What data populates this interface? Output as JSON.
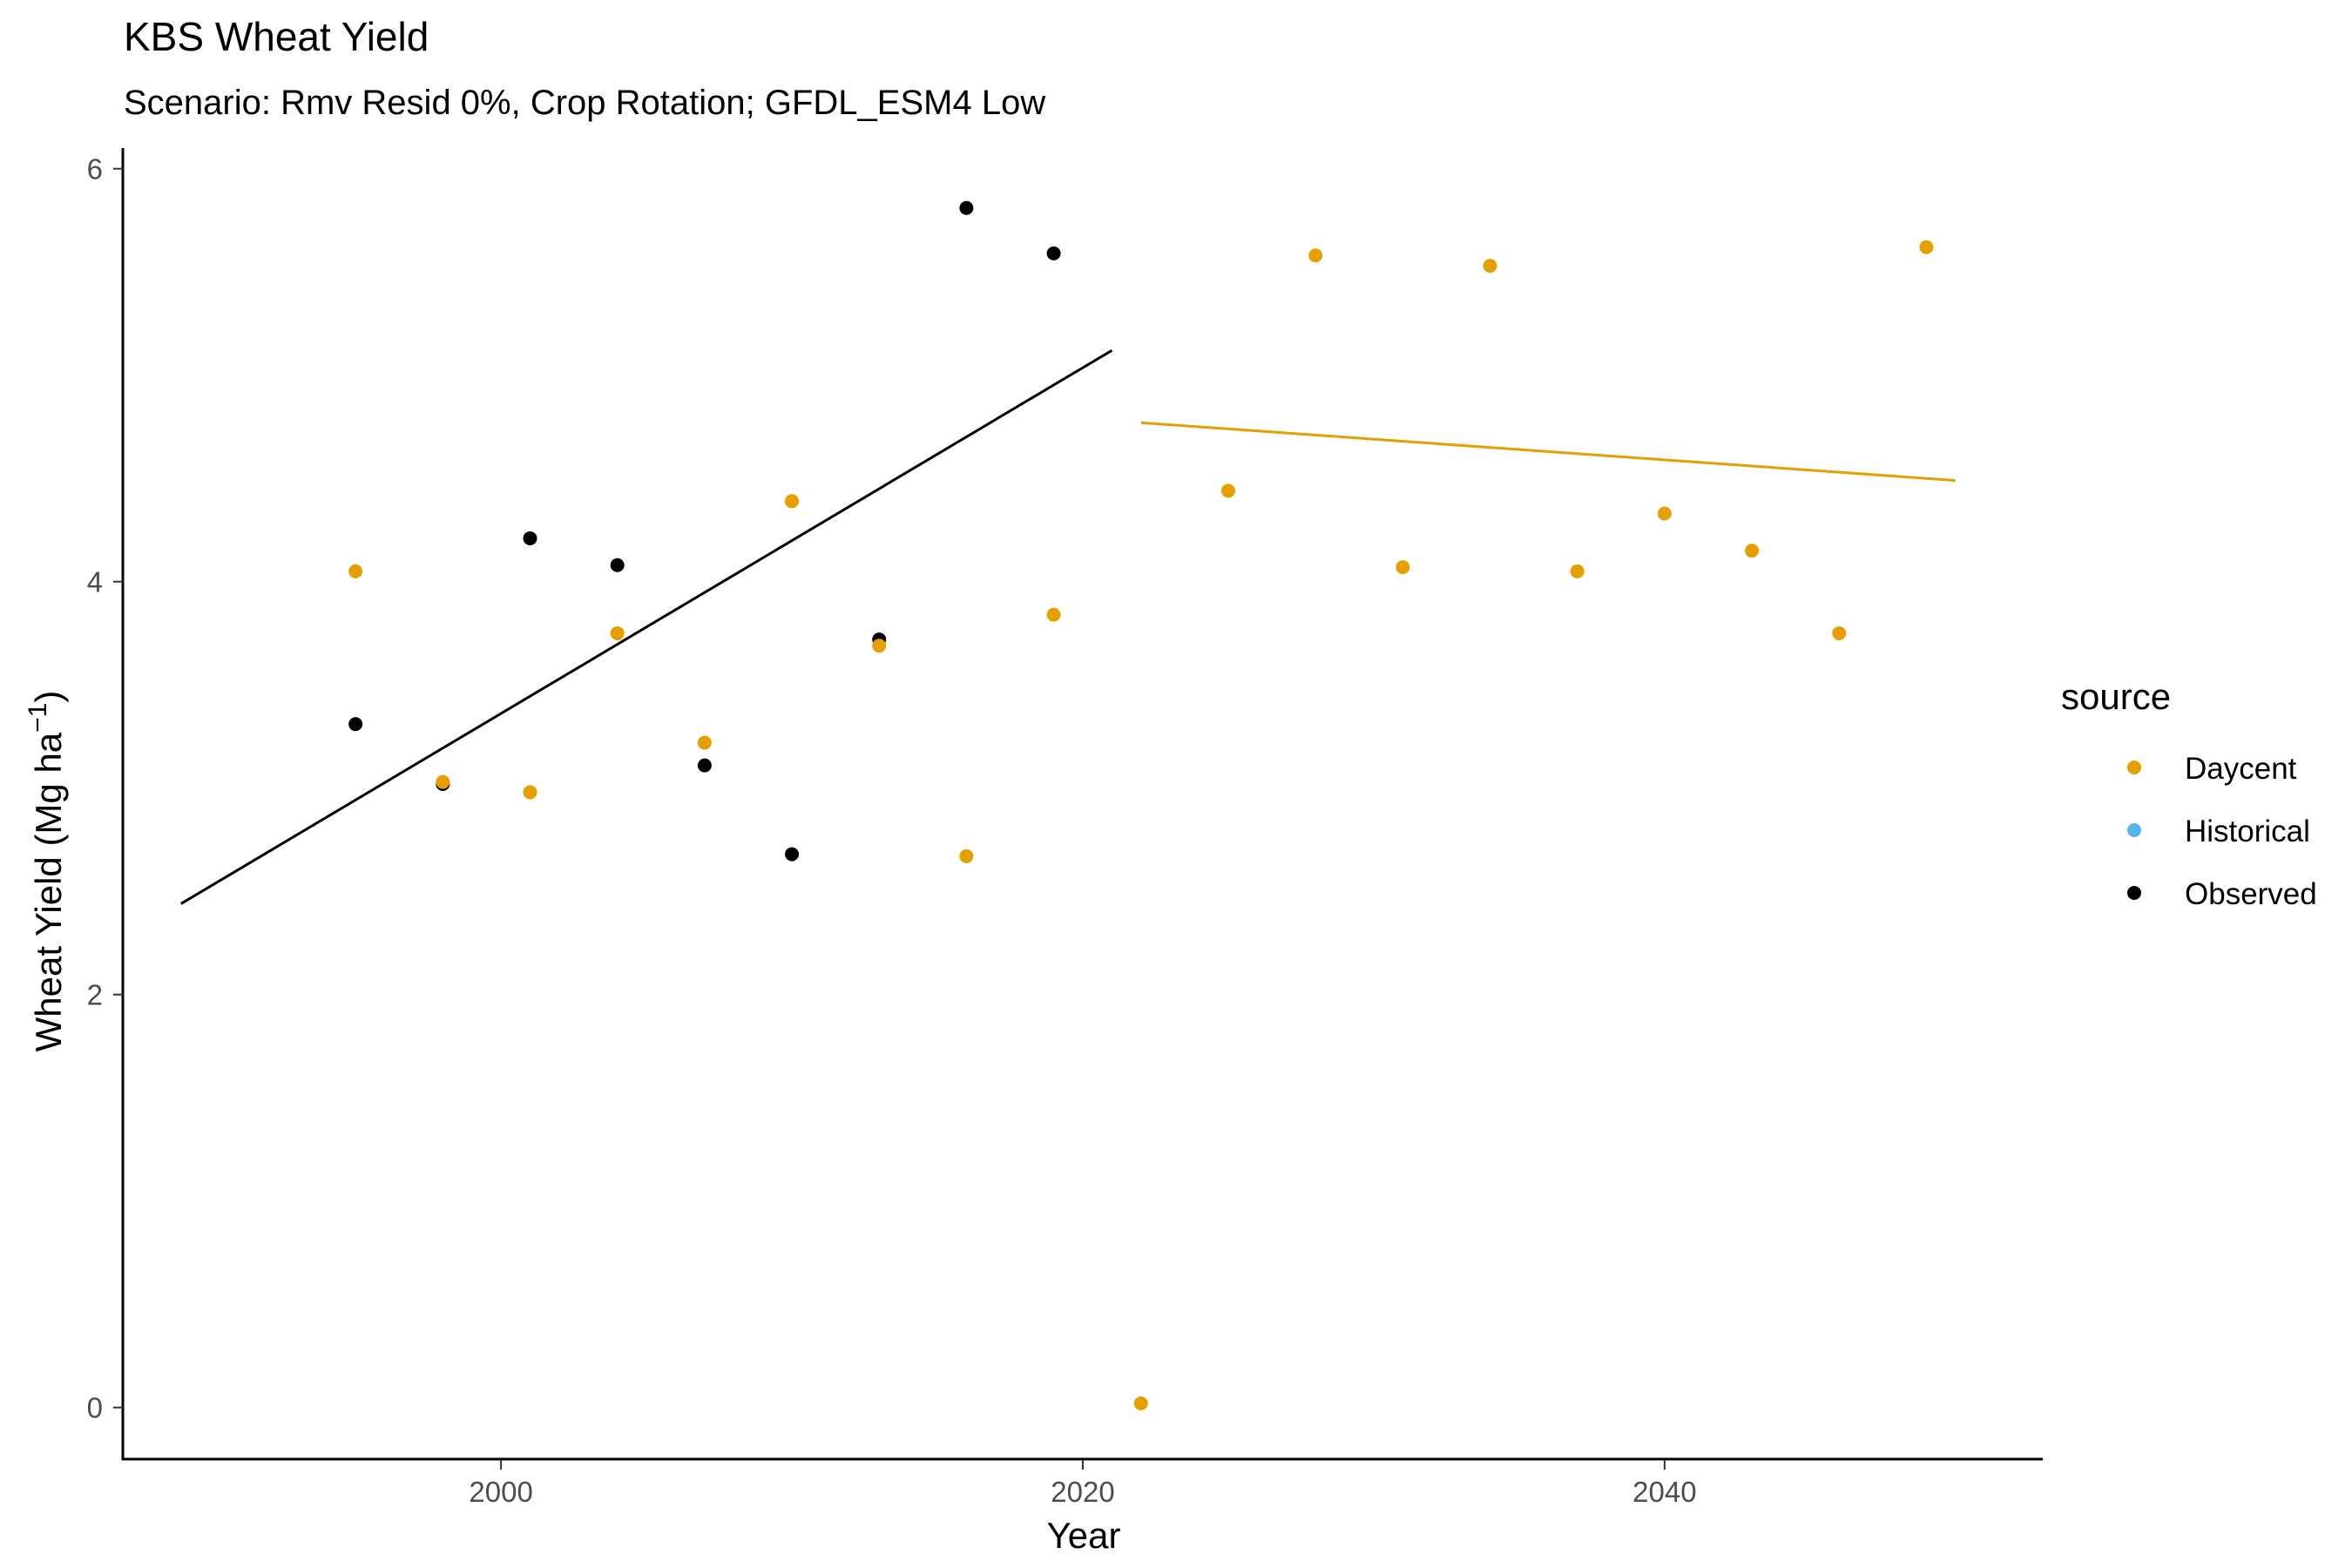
{
  "chart_data": {
    "type": "scatter",
    "title": "KBS Wheat Yield",
    "subtitle": "Scenario: Rmv Resid 0%, Crop Rotation; GFDL_ESM4 Low",
    "xlabel": "Year",
    "ylabel_main": "Wheat Yield (Mg ha",
    "ylabel_sup": "−1",
    "ylabel_close": ")",
    "xlim": [
      1987,
      2053
    ],
    "ylim": [
      -0.25,
      6.1
    ],
    "xticks": [
      2000,
      2020,
      2040
    ],
    "yticks": [
      0,
      2,
      4,
      6
    ],
    "grid": false,
    "legend_position": "right",
    "legend": {
      "title": "source",
      "items": [
        {
          "label": "Daycent",
          "color": "#E69F00"
        },
        {
          "label": "Historical",
          "color": "#56B4E9"
        },
        {
          "label": "Observed",
          "color": "#000000"
        }
      ]
    },
    "series": [
      {
        "name": "Observed",
        "color": "#000000",
        "points": [
          [
            1995,
            3.31
          ],
          [
            1998,
            3.02
          ],
          [
            2001,
            4.21
          ],
          [
            2004,
            4.08
          ],
          [
            2007,
            3.11
          ],
          [
            2010,
            2.68
          ],
          [
            2013,
            3.72
          ],
          [
            2016,
            5.81
          ],
          [
            2019,
            5.59
          ]
        ]
      },
      {
        "name": "Daycent",
        "color": "#E69F00",
        "points": [
          [
            1995,
            4.05
          ],
          [
            1998,
            3.03
          ],
          [
            2001,
            2.98
          ],
          [
            2004,
            3.75
          ],
          [
            2007,
            3.22
          ],
          [
            2010,
            4.39
          ],
          [
            2013,
            3.69
          ],
          [
            2016,
            2.67
          ],
          [
            2019,
            3.84
          ],
          [
            2022,
            0.02
          ],
          [
            2025,
            4.44
          ],
          [
            2028,
            5.58
          ],
          [
            2031,
            4.07
          ],
          [
            2034,
            5.53
          ],
          [
            2037,
            4.05
          ],
          [
            2040,
            4.33
          ],
          [
            2043,
            4.15
          ],
          [
            2046,
            3.75
          ],
          [
            2049,
            5.62
          ]
        ]
      }
    ],
    "trendlines": [
      {
        "series": "Observed",
        "color": "#000000",
        "from": [
          1989,
          2.44
        ],
        "to": [
          2021,
          5.12
        ]
      },
      {
        "series": "Daycent",
        "color": "#E69F00",
        "from": [
          2022,
          4.77
        ],
        "to": [
          2050,
          4.49
        ]
      }
    ]
  }
}
